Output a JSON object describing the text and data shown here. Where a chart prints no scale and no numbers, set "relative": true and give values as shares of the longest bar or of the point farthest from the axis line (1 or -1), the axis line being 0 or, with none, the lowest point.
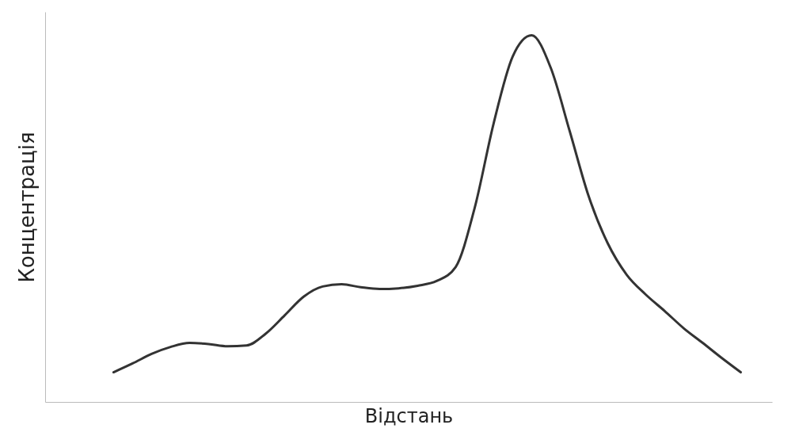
{
  "chart_data": {
    "type": "line",
    "relative": true,
    "xlabel": "Відстань",
    "ylabel": "Концентрація",
    "grid": false,
    "marker": "none",
    "line_style": "solid",
    "categories": [
      null,
      null,
      null,
      null,
      null,
      null,
      null,
      null,
      null,
      null,
      null,
      null,
      null,
      null,
      null,
      null,
      null,
      null,
      null,
      null,
      null,
      null,
      null,
      null,
      null,
      null,
      null,
      null,
      null,
      null,
      null,
      null,
      null,
      null
    ],
    "series": [
      {
        "color": "#333333",
        "values": [
          0.081,
          0.105,
          0.131,
          0.15,
          0.161,
          0.158,
          0.152,
          0.154,
          0.186,
          0.236,
          0.287,
          0.315,
          0.321,
          0.313,
          0.308,
          0.31,
          0.317,
          0.33,
          0.368,
          0.529,
          0.76,
          0.942,
          1,
          0.912,
          0.739,
          0.561,
          0.433,
          0.347,
          0.293,
          0.248,
          0.201,
          0.161,
          0.12,
          0.081
        ]
      }
    ]
  }
}
